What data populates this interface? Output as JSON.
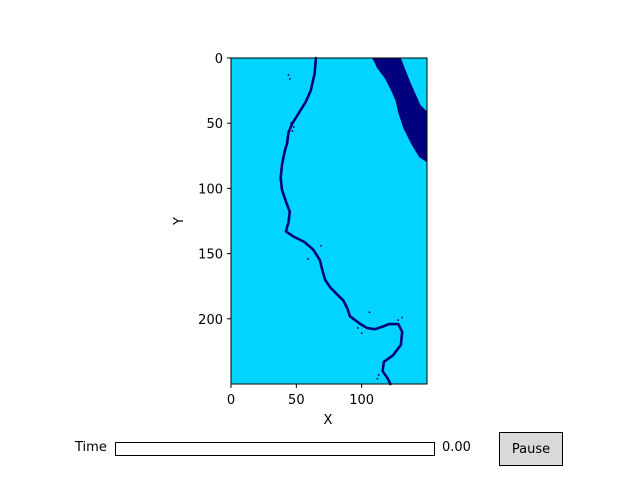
{
  "colors": {
    "land": "#00d4ff",
    "water": "#00007f",
    "frame": "#000000",
    "slider_fill": "#1f77b4"
  },
  "chart_data": {
    "type": "heatmap",
    "title": "",
    "xlabel": "X",
    "ylabel": "Y",
    "xlim": [
      0,
      150
    ],
    "ylim": [
      250,
      0
    ],
    "y_inverted": true,
    "x_ticks": [
      "0",
      "50",
      "100"
    ],
    "x_tick_values": [
      0,
      50,
      100
    ],
    "y_ticks": [
      "0",
      "50",
      "100",
      "150",
      "200"
    ],
    "y_tick_values": [
      0,
      50,
      100,
      150,
      200
    ],
    "legend": "none",
    "grid": false,
    "background_value_color": "#00d4ff",
    "river_centerline": [
      [
        65,
        0
      ],
      [
        64,
        12
      ],
      [
        61,
        25
      ],
      [
        57,
        34
      ],
      [
        52,
        42
      ],
      [
        47,
        50
      ],
      [
        44,
        57
      ],
      [
        43,
        65
      ],
      [
        41,
        72
      ],
      [
        39,
        82
      ],
      [
        38,
        92
      ],
      [
        39,
        101
      ],
      [
        42,
        110
      ],
      [
        45,
        118
      ],
      [
        44,
        126
      ],
      [
        42,
        133
      ],
      [
        48,
        137
      ],
      [
        56,
        141
      ],
      [
        63,
        147
      ],
      [
        68,
        155
      ],
      [
        70,
        163
      ],
      [
        72,
        170
      ],
      [
        76,
        176
      ],
      [
        81,
        181
      ],
      [
        86,
        186
      ],
      [
        89,
        192
      ],
      [
        91,
        198
      ],
      [
        95,
        201
      ],
      [
        99,
        204
      ],
      [
        104,
        207
      ],
      [
        110,
        208
      ],
      [
        116,
        206
      ],
      [
        121,
        204
      ],
      [
        128,
        204
      ],
      [
        131,
        210
      ],
      [
        130,
        220
      ],
      [
        124,
        228
      ],
      [
        117,
        233
      ],
      [
        116,
        240
      ],
      [
        120,
        246
      ],
      [
        122,
        250
      ]
    ],
    "upper_right_water_region": [
      [
        108,
        0
      ],
      [
        130,
        0
      ],
      [
        137,
        18
      ],
      [
        145,
        36
      ],
      [
        150,
        41
      ],
      [
        150,
        80
      ],
      [
        144,
        76
      ],
      [
        138,
        66
      ],
      [
        132,
        54
      ],
      [
        128,
        42
      ],
      [
        126,
        33
      ],
      [
        123,
        26
      ],
      [
        118,
        16
      ],
      [
        112,
        8
      ]
    ],
    "water_speckles": [
      [
        44,
        13
      ],
      [
        45,
        16
      ],
      [
        46,
        50
      ],
      [
        48,
        53
      ],
      [
        47,
        56
      ],
      [
        69,
        144
      ],
      [
        59,
        154
      ],
      [
        106,
        195
      ],
      [
        97,
        207
      ],
      [
        100,
        211
      ],
      [
        131,
        199
      ],
      [
        128,
        201
      ],
      [
        113,
        243
      ],
      [
        112,
        246
      ]
    ]
  },
  "controls": {
    "time_label": "Time",
    "time_value_text": "0.00",
    "time_fraction": 0,
    "pause_label": "Pause"
  }
}
